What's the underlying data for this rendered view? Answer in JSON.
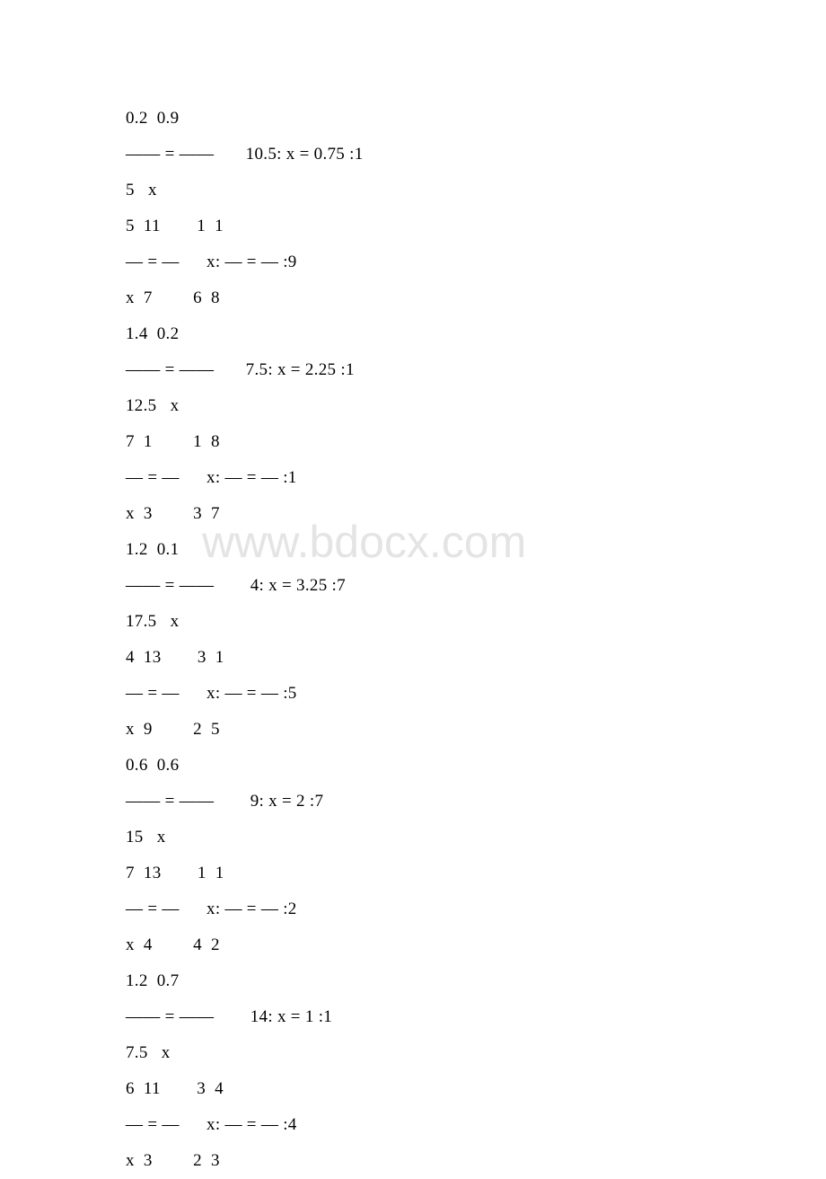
{
  "watermark": "www.bdocx.com",
  "lines": [
    "0.2  0.9",
    "—— = ——       10.5: x = 0.75 :1",
    "5   x",
    "5  11        1  1",
    "— = —      x: — = — :9",
    "x  7         6  8",
    "1.4  0.2",
    "—— = ——       7.5: x = 2.25 :1",
    "12.5   x",
    "7  1         1  8",
    "— = —      x: — = — :1",
    "x  3         3  7",
    "1.2  0.1",
    "—— = ——        4: x = 3.25 :7",
    "17.5   x",
    "4  13        3  1",
    "— = —      x: — = — :5",
    "x  9         2  5",
    "0.6  0.6",
    "—— = ——        9: x = 2 :7",
    "15   x",
    "7  13        1  1",
    "— = —      x: — = — :2",
    "x  4         4  2",
    "1.2  0.7",
    "—— = ——        14: x = 1 :1",
    "7.5   x",
    "6  11        3  4",
    "— = —      x: — = — :4",
    "x  3         2  3"
  ]
}
